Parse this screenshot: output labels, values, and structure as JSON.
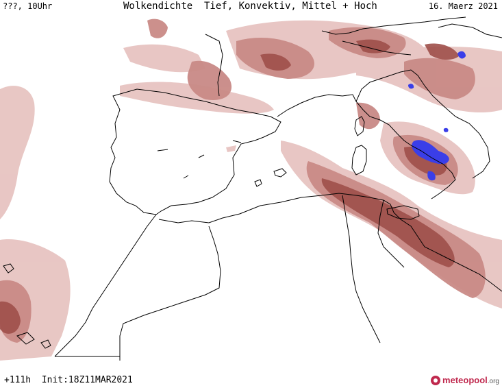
{
  "header": {
    "left": "???, 10Uhr",
    "title": "Wolkendichte  Tief, Konvektiv, Mittel + Hoch",
    "date": "16. Maerz 2021"
  },
  "footer": {
    "run": "+111h  Init:18Z11MAR2021"
  },
  "brand": {
    "name_part1": "meteo",
    "name_part2": "pool",
    "suffix": ".org",
    "logo_icon": "meteopool-logo-icon"
  },
  "colors": {
    "cloud_light": "#e7c4c1",
    "cloud_mid": "#c98a86",
    "cloud_dense": "#9e4f4a",
    "precip_blue": "#3a3ee8",
    "coastline": "#000000",
    "background": "#ffffff"
  }
}
